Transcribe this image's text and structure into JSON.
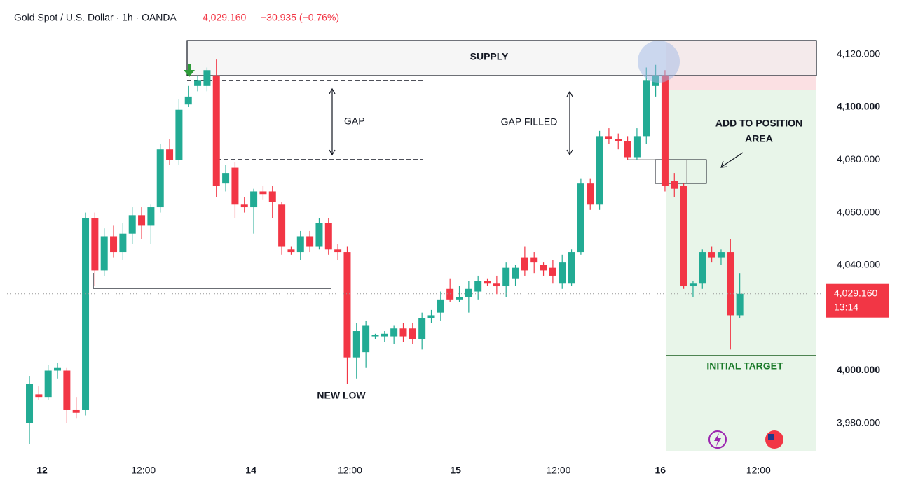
{
  "chart_data": {
    "type": "candlestick",
    "symbol": "Gold Spot / U.S. Dollar · 1h · OANDA",
    "header_price": "4,029.160",
    "header_change": "−30.935 (−0.76%)",
    "up_color": "#22ab94",
    "down_color": "#f23645",
    "open": [
      3980,
      3991,
      3990,
      4000,
      4000,
      3985,
      3985,
      4058,
      4038,
      4051,
      4045,
      4052,
      4059,
      4055,
      4062,
      4084,
      4080,
      4101,
      4108,
      4108,
      4112,
      4071,
      4077,
      4063,
      4062,
      4068,
      4068,
      4063,
      4046,
      4045,
      4051,
      4047,
      4056,
      4046,
      4045,
      4005,
      4007,
      4013,
      4013,
      4013,
      4016,
      4016,
      4012,
      4020,
      4022,
      4031,
      4027,
      4028,
      4030,
      4034,
      4033,
      4032,
      4035,
      4043,
      4043,
      4040,
      4039,
      4033,
      4033,
      4045,
      4071,
      4063,
      4089,
      4088,
      4087,
      4081,
      4089,
      4108,
      4112,
      4072,
      4070,
      4032,
      4033,
      4045,
      4043,
      4045,
      4021
    ],
    "high": [
      3998,
      3994,
      4002,
      4003,
      4001,
      3990,
      4060,
      4060,
      4054,
      4055,
      4056,
      4062,
      4062,
      4063,
      4086,
      4088,
      4103,
      4108,
      4112,
      4115,
      4118,
      4078,
      4079,
      4066,
      4069,
      4070,
      4070,
      4064,
      4047,
      4053,
      4053,
      4058,
      4058,
      4048,
      4047,
      4018,
      4019,
      4014,
      4015,
      4017,
      4018,
      4018,
      4022,
      4023,
      4030,
      4035,
      4032,
      4034,
      4036,
      4035,
      4036,
      4041,
      4040,
      4047,
      4045,
      4041,
      4042,
      4044,
      4046,
      4073,
      4073,
      4091,
      4092,
      4090,
      4089,
      4092,
      4115,
      4116,
      4114,
      4075,
      4071,
      4034,
      4046,
      4047,
      4046,
      4050,
      4037
    ],
    "low": [
      3972,
      3989,
      3989,
      3997,
      3980,
      3982,
      3983,
      4032,
      4036,
      4043,
      4042,
      4048,
      4050,
      4048,
      4060,
      4078,
      4078,
      4100,
      4106,
      4106,
      4066,
      4068,
      4058,
      4060,
      4052,
      4065,
      4058,
      4044,
      4044,
      4042,
      4045,
      4046,
      4044,
      4042,
      3995,
      3997,
      4001,
      4012,
      4011,
      4010,
      4011,
      4010,
      4008,
      4018,
      4019,
      4026,
      4026,
      4022,
      4027,
      4032,
      4029,
      4028,
      4032,
      4036,
      4037,
      4036,
      4033,
      4031,
      4032,
      4044,
      4061,
      4061,
      4086,
      4084,
      4080,
      4080,
      4086,
      4104,
      4068,
      4066,
      4031,
      4028,
      4031,
      4041,
      4040,
      4008,
      4020
    ],
    "close": [
      3995,
      3990,
      4000,
      4001,
      3985,
      3984,
      4058,
      4038,
      4051,
      4045,
      4052,
      4059,
      4055,
      4062,
      4084,
      4080,
      4099,
      4104,
      4110,
      4114,
      4070,
      4075,
      4063,
      4062,
      4068,
      4067,
      4064,
      4047,
      4045,
      4051,
      4047,
      4056,
      4046,
      4045,
      4005,
      4015,
      4017,
      4013.5,
      4014,
      4016,
      4013,
      4012,
      4020,
      4021,
      4027,
      4027,
      4028,
      4031,
      4034,
      4033,
      4032,
      4039,
      4039,
      4038,
      4041,
      4038,
      4036,
      4041,
      4045,
      4071,
      4063,
      4089,
      4088,
      4087,
      4081,
      4089,
      4110,
      4112,
      4070,
      4069,
      4032,
      4033,
      4045,
      4043,
      4045,
      4021,
      4029.16
    ],
    "xlim": [
      -2.4,
      84.2
    ],
    "xticks": [
      {
        "value": 1.35,
        "label": "12"
      },
      {
        "value": 12.2,
        "label": "12:00"
      },
      {
        "value": 23.7,
        "label": "14"
      },
      {
        "value": 34.3,
        "label": "12:00"
      },
      {
        "value": 45.6,
        "label": "15"
      },
      {
        "value": 56.6,
        "label": "12:00"
      },
      {
        "value": 67.5,
        "label": "16"
      },
      {
        "value": 78,
        "label": "12:00"
      }
    ],
    "ylim": [
      3968,
      4130
    ],
    "yticks": [
      {
        "value": 3980,
        "label": "3,980.000"
      },
      {
        "value": 4000,
        "label": "4,000.000"
      },
      {
        "value": 4040,
        "label": "4,040.000"
      },
      {
        "value": 4060,
        "label": "4,060.000"
      },
      {
        "value": 4080,
        "label": "4,080.000"
      },
      {
        "value": 4100,
        "label": "4,100.000"
      },
      {
        "value": 4120,
        "label": "4,120.000"
      }
    ],
    "price_tag": {
      "value": 4029.16,
      "label": "4,029.160",
      "countdown": "13:14"
    },
    "annotations": {
      "supply": "SUPPLY",
      "gap": "GAP",
      "gap_filled": "GAP FILLED",
      "add_line1": "ADD TO POSITION",
      "add_line2": "AREA",
      "new_low": "NEW LOW",
      "target": "INITIAL TARGET"
    }
  }
}
